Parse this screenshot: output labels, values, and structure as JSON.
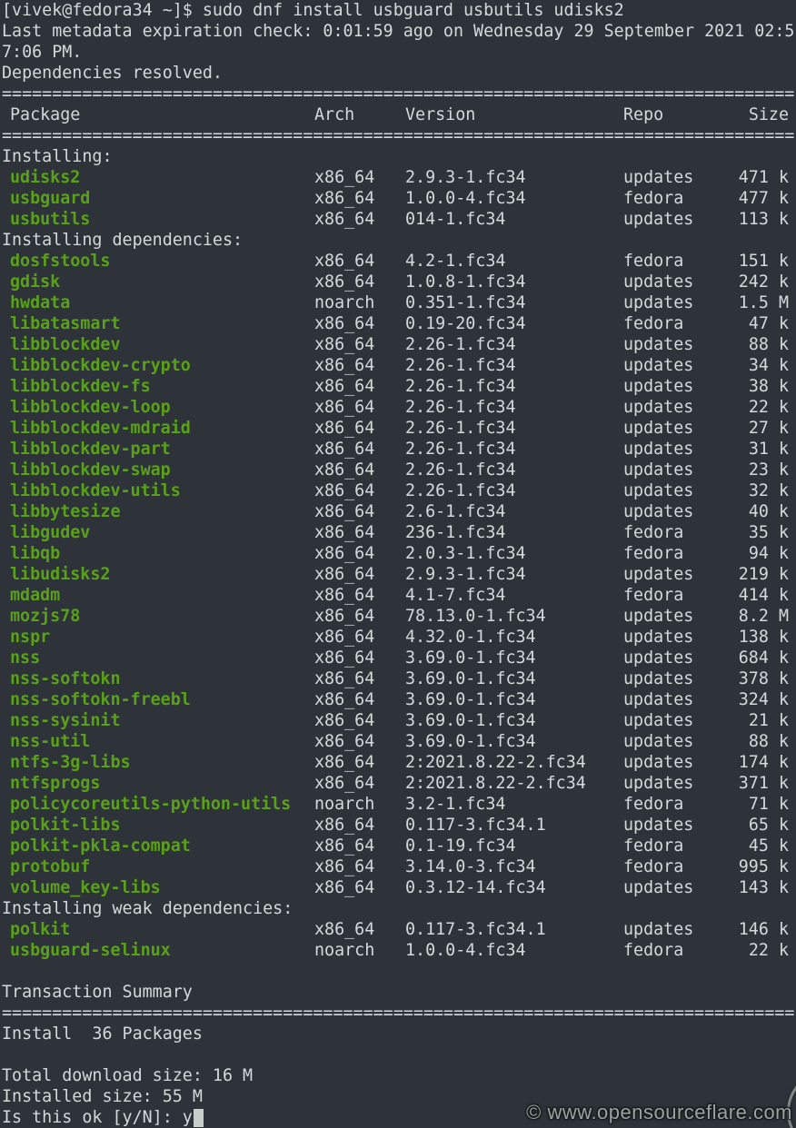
{
  "colors": {
    "background": "#2d3338",
    "foreground": "#d4d9da",
    "package_name_green": "#5aa11a",
    "cursor": "#c8cfc9",
    "watermark_gray": "#9aa49e"
  },
  "shell": {
    "command_line": "[vivek@fedora34 ~]$ sudo dnf install usbguard usbutils udisks2",
    "metadata_line_1": "Last metadata expiration check: 0:01:59 ago on Wednesday 29 September 2021 02:5",
    "metadata_line_2": "7:06 PM.",
    "dependencies_resolved": "Dependencies resolved."
  },
  "separator": {
    "char": "=",
    "count": 79
  },
  "table": {
    "headers": {
      "package": "Package",
      "arch": "Arch",
      "version": "Version",
      "repo": "Repo",
      "size": "Size"
    },
    "sections": [
      {
        "label": "Installing:",
        "packages": [
          {
            "name": "udisks2",
            "arch": "x86_64",
            "version": "2.9.3-1.fc34",
            "repo": "updates",
            "size": "471 k"
          },
          {
            "name": "usbguard",
            "arch": "x86_64",
            "version": "1.0.0-4.fc34",
            "repo": "fedora",
            "size": "477 k"
          },
          {
            "name": "usbutils",
            "arch": "x86_64",
            "version": "014-1.fc34",
            "repo": "updates",
            "size": "113 k"
          }
        ]
      },
      {
        "label": "Installing dependencies:",
        "packages": [
          {
            "name": "dosfstools",
            "arch": "x86_64",
            "version": "4.2-1.fc34",
            "repo": "fedora",
            "size": "151 k"
          },
          {
            "name": "gdisk",
            "arch": "x86_64",
            "version": "1.0.8-1.fc34",
            "repo": "updates",
            "size": "242 k"
          },
          {
            "name": "hwdata",
            "arch": "noarch",
            "version": "0.351-1.fc34",
            "repo": "updates",
            "size": "1.5 M"
          },
          {
            "name": "libatasmart",
            "arch": "x86_64",
            "version": "0.19-20.fc34",
            "repo": "fedora",
            "size": "47 k"
          },
          {
            "name": "libblockdev",
            "arch": "x86_64",
            "version": "2.26-1.fc34",
            "repo": "updates",
            "size": "88 k"
          },
          {
            "name": "libblockdev-crypto",
            "arch": "x86_64",
            "version": "2.26-1.fc34",
            "repo": "updates",
            "size": "34 k"
          },
          {
            "name": "libblockdev-fs",
            "arch": "x86_64",
            "version": "2.26-1.fc34",
            "repo": "updates",
            "size": "38 k"
          },
          {
            "name": "libblockdev-loop",
            "arch": "x86_64",
            "version": "2.26-1.fc34",
            "repo": "updates",
            "size": "22 k"
          },
          {
            "name": "libblockdev-mdraid",
            "arch": "x86_64",
            "version": "2.26-1.fc34",
            "repo": "updates",
            "size": "27 k"
          },
          {
            "name": "libblockdev-part",
            "arch": "x86_64",
            "version": "2.26-1.fc34",
            "repo": "updates",
            "size": "31 k"
          },
          {
            "name": "libblockdev-swap",
            "arch": "x86_64",
            "version": "2.26-1.fc34",
            "repo": "updates",
            "size": "23 k"
          },
          {
            "name": "libblockdev-utils",
            "arch": "x86_64",
            "version": "2.26-1.fc34",
            "repo": "updates",
            "size": "32 k"
          },
          {
            "name": "libbytesize",
            "arch": "x86_64",
            "version": "2.6-1.fc34",
            "repo": "updates",
            "size": "40 k"
          },
          {
            "name": "libgudev",
            "arch": "x86_64",
            "version": "236-1.fc34",
            "repo": "fedora",
            "size": "35 k"
          },
          {
            "name": "libqb",
            "arch": "x86_64",
            "version": "2.0.3-1.fc34",
            "repo": "fedora",
            "size": "94 k"
          },
          {
            "name": "libudisks2",
            "arch": "x86_64",
            "version": "2.9.3-1.fc34",
            "repo": "updates",
            "size": "219 k"
          },
          {
            "name": "mdadm",
            "arch": "x86_64",
            "version": "4.1-7.fc34",
            "repo": "fedora",
            "size": "414 k"
          },
          {
            "name": "mozjs78",
            "arch": "x86_64",
            "version": "78.13.0-1.fc34",
            "repo": "updates",
            "size": "8.2 M"
          },
          {
            "name": "nspr",
            "arch": "x86_64",
            "version": "4.32.0-1.fc34",
            "repo": "updates",
            "size": "138 k"
          },
          {
            "name": "nss",
            "arch": "x86_64",
            "version": "3.69.0-1.fc34",
            "repo": "updates",
            "size": "684 k"
          },
          {
            "name": "nss-softokn",
            "arch": "x86_64",
            "version": "3.69.0-1.fc34",
            "repo": "updates",
            "size": "378 k"
          },
          {
            "name": "nss-softokn-freebl",
            "arch": "x86_64",
            "version": "3.69.0-1.fc34",
            "repo": "updates",
            "size": "324 k"
          },
          {
            "name": "nss-sysinit",
            "arch": "x86_64",
            "version": "3.69.0-1.fc34",
            "repo": "updates",
            "size": "21 k"
          },
          {
            "name": "nss-util",
            "arch": "x86_64",
            "version": "3.69.0-1.fc34",
            "repo": "updates",
            "size": "88 k"
          },
          {
            "name": "ntfs-3g-libs",
            "arch": "x86_64",
            "version": "2:2021.8.22-2.fc34",
            "repo": "updates",
            "size": "174 k"
          },
          {
            "name": "ntfsprogs",
            "arch": "x86_64",
            "version": "2:2021.8.22-2.fc34",
            "repo": "updates",
            "size": "371 k"
          },
          {
            "name": "policycoreutils-python-utils",
            "arch": "noarch",
            "version": "3.2-1.fc34",
            "repo": "fedora",
            "size": "71 k"
          },
          {
            "name": "polkit-libs",
            "arch": "x86_64",
            "version": "0.117-3.fc34.1",
            "repo": "updates",
            "size": "65 k"
          },
          {
            "name": "polkit-pkla-compat",
            "arch": "x86_64",
            "version": "0.1-19.fc34",
            "repo": "fedora",
            "size": "45 k"
          },
          {
            "name": "protobuf",
            "arch": "x86_64",
            "version": "3.14.0-3.fc34",
            "repo": "fedora",
            "size": "995 k"
          },
          {
            "name": "volume_key-libs",
            "arch": "x86_64",
            "version": "0.3.12-14.fc34",
            "repo": "updates",
            "size": "143 k"
          }
        ]
      },
      {
        "label": "Installing weak dependencies:",
        "packages": [
          {
            "name": "polkit",
            "arch": "x86_64",
            "version": "0.117-3.fc34.1",
            "repo": "updates",
            "size": "146 k"
          },
          {
            "name": "usbguard-selinux",
            "arch": "noarch",
            "version": "1.0.0-4.fc34",
            "repo": "fedora",
            "size": "22 k"
          }
        ]
      }
    ]
  },
  "summary": {
    "title": "Transaction Summary",
    "install_line": "Install  36 Packages",
    "total_download_size": "Total download size: 16 M",
    "installed_size": "Installed size: 55 M",
    "confirm_prompt": "Is this ok [y/N]: y"
  },
  "watermark": "© www.opensourceflare.com"
}
